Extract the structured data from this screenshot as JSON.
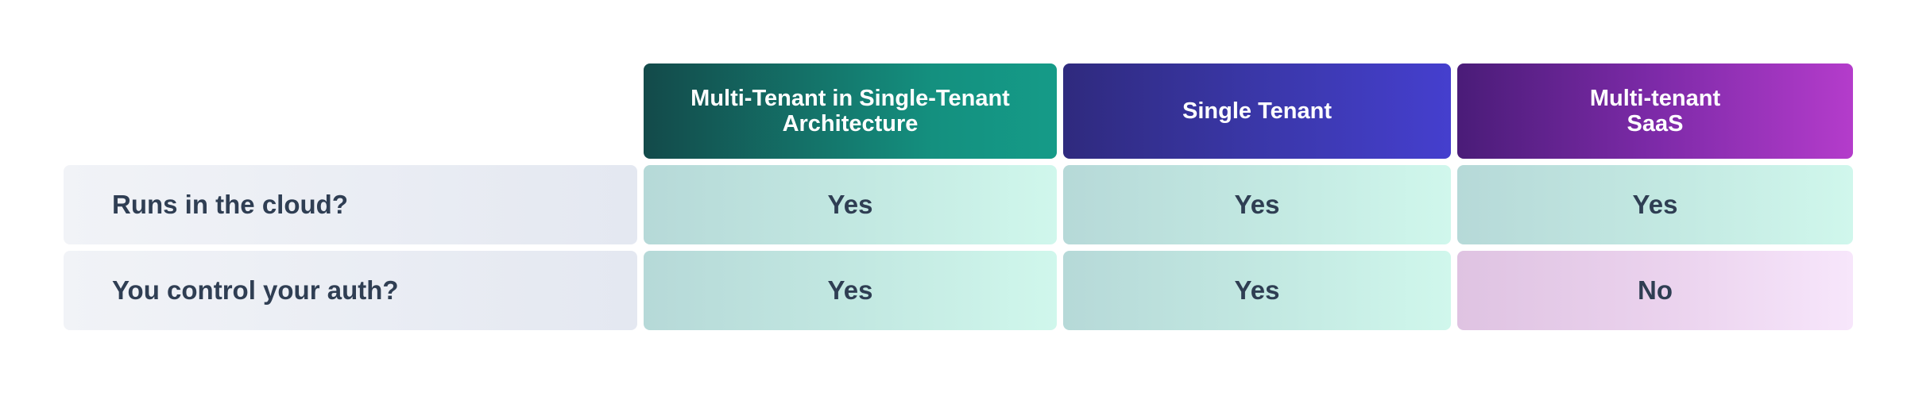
{
  "columns": [
    {
      "label": "Multi-Tenant in Single-Tenant\nArchitecture"
    },
    {
      "label": "Single Tenant"
    },
    {
      "label": "Multi-tenant\nSaaS"
    }
  ],
  "rows": [
    {
      "label": "Runs in the cloud?",
      "values": [
        "Yes",
        "Yes",
        "Yes"
      ]
    },
    {
      "label": "You control your auth?",
      "values": [
        "Yes",
        "Yes",
        "No"
      ]
    }
  ],
  "colors": {
    "col1_header": "#14907f",
    "col2_header": "#3a37a8",
    "col3_header": "#7d2aa8",
    "yes_cell": "#c3e9e2",
    "no_cell": "#ebd3ee",
    "text_dark": "#2f3e53"
  }
}
